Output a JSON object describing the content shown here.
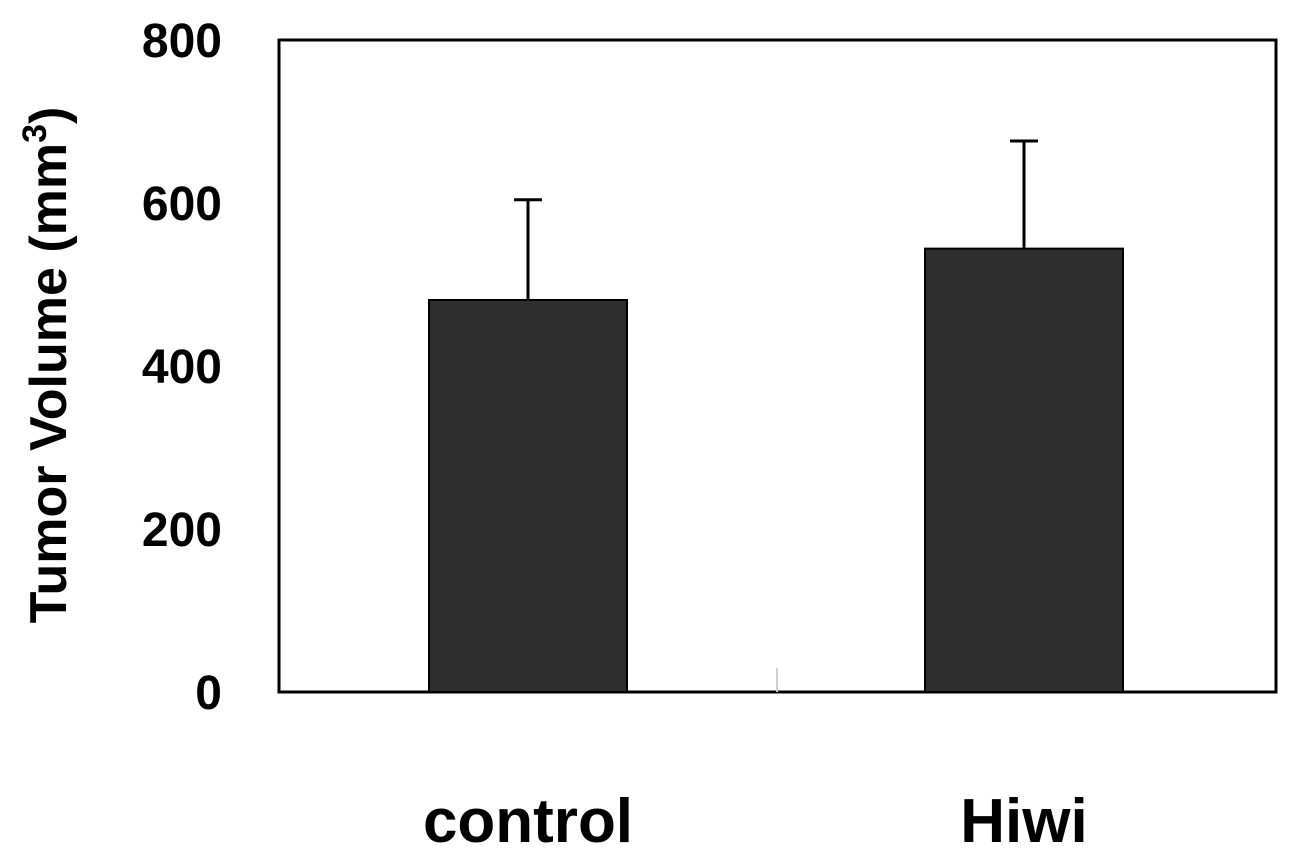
{
  "chart_data": {
    "type": "bar",
    "categories": [
      "control",
      "Hiwi"
    ],
    "series": [
      {
        "values": [
          481,
          544
        ],
        "error": [
          123,
          132
        ],
        "color": "#2e2e2e"
      }
    ],
    "ylabel": {
      "main": "Tumor Volume (mm",
      "superscript": "3",
      "close": ")"
    },
    "ylim": [
      0,
      800
    ],
    "yticks": [
      "0",
      "200",
      "400",
      "600",
      "800"
    ],
    "grid": false,
    "legend": "none"
  }
}
